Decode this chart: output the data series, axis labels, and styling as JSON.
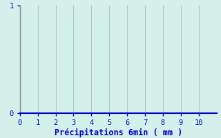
{
  "xlabel": "Précipitations 6min ( mm )",
  "xlim": [
    0,
    11
  ],
  "ylim": [
    0,
    1
  ],
  "xticks": [
    0,
    1,
    2,
    3,
    4,
    5,
    6,
    7,
    8,
    9,
    10
  ],
  "yticks": [
    0,
    1
  ],
  "background_color": "#d4f0ea",
  "plot_bg_color": "#d4f0ea",
  "grid_color": "#aaccc6",
  "axis_bottom_color": "#0000cc",
  "axis_left_color": "#888888",
  "tick_color": "#0000cc",
  "label_color": "#0000cc",
  "label_fontsize": 8.5,
  "tick_fontsize": 7.5
}
